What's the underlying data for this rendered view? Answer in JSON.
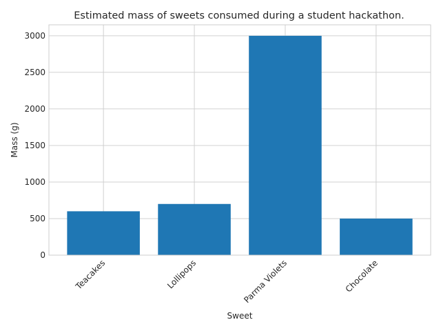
{
  "chart_data": {
    "type": "bar",
    "title": "Estimated mass of sweets consumed during a student hackathon.",
    "xlabel": "Sweet",
    "ylabel": "Mass (g)",
    "categories": [
      "Teacakes",
      "Lollipops",
      "Parma Violets",
      "Chocolate"
    ],
    "values": [
      600,
      700,
      3000,
      500
    ],
    "ylim": [
      0,
      3150
    ],
    "yticks": [
      0,
      500,
      1000,
      1500,
      2000,
      2500,
      3000
    ],
    "bar_color": "#1f77b4",
    "grid": true,
    "legend": "none"
  }
}
